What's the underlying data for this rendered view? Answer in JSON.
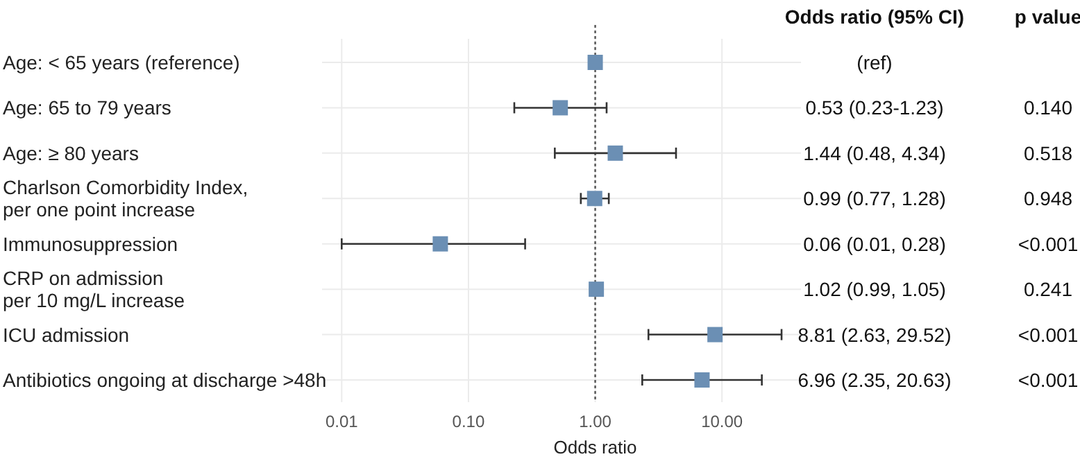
{
  "chart_data": {
    "type": "scatter",
    "orientation": "horizontal",
    "log": "x",
    "xlabel": "Odds ratio",
    "categories": [
      "Age: < 65 years (reference)",
      "Age: 65 to 79 years",
      "Age: ≥ 80 years",
      "Charlson Comorbidity Index,\nper one point increase",
      "Immunosuppression",
      "CRP on admission\nper 10 mg/L increase",
      "ICU admission",
      "Antibiotics ongoing at discharge >48h"
    ],
    "series": [
      {
        "color": "#6b8fb4",
        "values": [
          1,
          0.53,
          1.44,
          0.99,
          0.06,
          1.02,
          8.81,
          6.96
        ],
        "errors": [
          null,
          [
            0.23,
            1.23
          ],
          [
            0.48,
            4.34
          ],
          [
            0.77,
            1.28
          ],
          [
            0.01,
            0.28
          ],
          [
            0.99,
            1.05
          ],
          [
            2.63,
            29.52
          ],
          [
            2.35,
            20.63
          ]
        ]
      }
    ],
    "marker": "square",
    "grid": true,
    "xlim": [
      0.007,
      42
    ],
    "xticks": [
      {
        "value": 0.01,
        "label": "0.01"
      },
      {
        "value": 0.1,
        "label": "0.10"
      },
      {
        "value": 1,
        "label": "1.00"
      },
      {
        "value": 10,
        "label": "10.00"
      }
    ],
    "ref_lines": [
      {
        "axis": "x",
        "value": 1,
        "line_style": "dotted",
        "color": "#555555"
      }
    ],
    "annotations": [
      "Odds ratio  (95% CI)",
      "p value",
      "(ref)",
      "0.53 (0.23-1.23)",
      "1.44 (0.48, 4.34)",
      "0.99 (0.77, 1.28)",
      "0.06 (0.01, 0.28)",
      "1.02 (0.99, 1.05)",
      "8.81 (2.63, 29.52)",
      "6.96 (2.35, 20.63)",
      "0.140",
      "0.518",
      "0.948",
      "<0.001",
      "0.241",
      "<0.001",
      "<0.001"
    ]
  }
}
